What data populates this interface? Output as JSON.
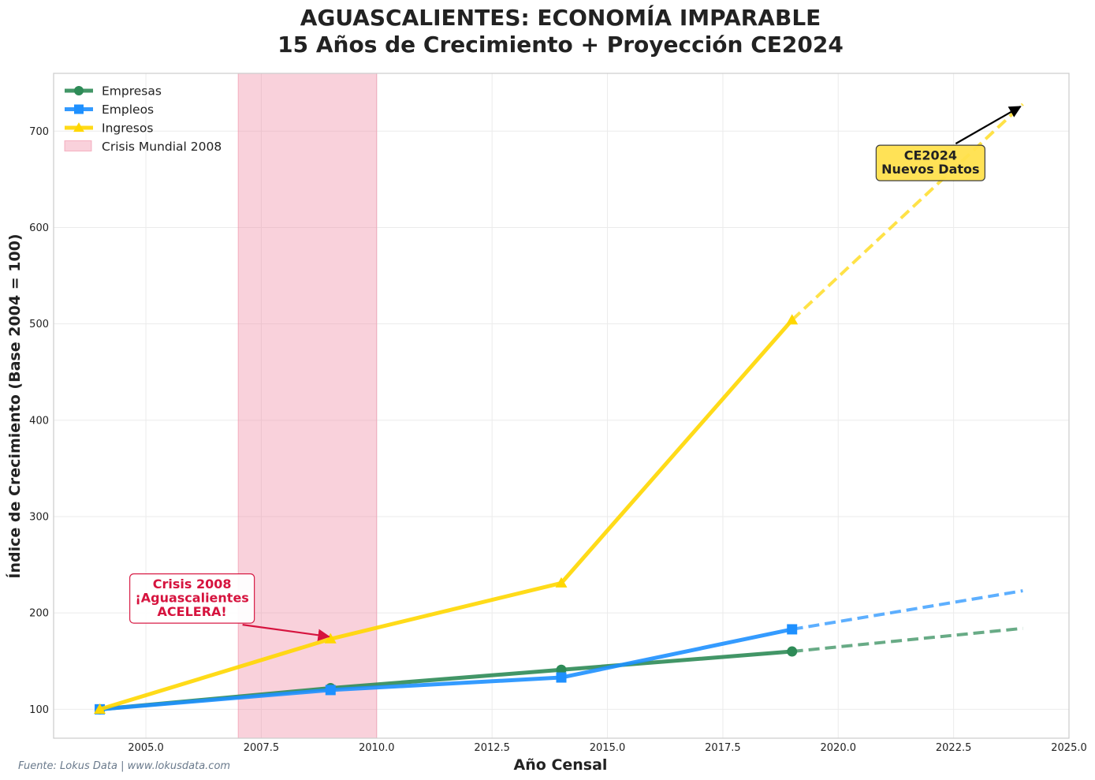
{
  "title_lines": [
    "AGUASCALIENTES: ECONOMÍA IMPARABLE",
    "15 Años de Crecimiento + Proyección CE2024"
  ],
  "source": "Fuente: Lokus Data | www.lokusdata.com",
  "chart_data": {
    "type": "line",
    "xlabel": "Año Censal",
    "ylabel": "Índice de Crecimiento (Base 2004 = 100)",
    "xlim": [
      2003,
      2025
    ],
    "ylim": [
      70,
      760
    ],
    "x_ticks": [
      2005.0,
      2007.5,
      2010.0,
      2012.5,
      2015.0,
      2017.5,
      2020.0,
      2022.5,
      2025.0
    ],
    "x_tick_labels": [
      "2005.0",
      "2007.5",
      "2010.0",
      "2012.5",
      "2015.0",
      "2017.5",
      "2020.0",
      "2022.5",
      "2025.0"
    ],
    "y_ticks": [
      100,
      200,
      300,
      400,
      500,
      600,
      700
    ],
    "y_tick_labels": [
      "100",
      "200",
      "300",
      "400",
      "500",
      "600",
      "700"
    ],
    "grid": true,
    "legend_position": "top-left",
    "series": [
      {
        "name": "Empresas",
        "color": "#2e8b57",
        "marker": "circle",
        "x": [
          2004,
          2009,
          2014,
          2019
        ],
        "values": [
          100,
          122,
          141,
          160
        ],
        "projection": {
          "x": [
            2019,
            2024
          ],
          "values": [
            160,
            184
          ]
        }
      },
      {
        "name": "Empleos",
        "color": "#1e90ff",
        "marker": "square",
        "x": [
          2004,
          2009,
          2014,
          2019
        ],
        "values": [
          100,
          120,
          133,
          183
        ],
        "projection": {
          "x": [
            2019,
            2024
          ],
          "values": [
            183,
            223
          ]
        }
      },
      {
        "name": "Ingresos",
        "color": "#ffd700",
        "marker": "triangle",
        "x": [
          2004,
          2009,
          2014,
          2019
        ],
        "values": [
          100,
          173,
          231,
          504
        ],
        "projection": {
          "x": [
            2019,
            2024
          ],
          "values": [
            504,
            728
          ]
        }
      }
    ],
    "shaded_region": {
      "name": "Crisis Mundial 2008",
      "x_start": 2007,
      "x_end": 2010,
      "color": "#f08ca4"
    },
    "annotations": [
      {
        "id": "crisis",
        "lines": [
          "Crisis 2008",
          "¡Aguascalientes",
          "ACELERA!"
        ],
        "target": [
          2009,
          173
        ],
        "text_pos": [
          2006,
          215
        ],
        "color": "#d6133e"
      },
      {
        "id": "ce2024",
        "lines": [
          "CE2024",
          "Nuevos Datos"
        ],
        "target": [
          2024,
          728
        ],
        "text_pos": [
          2022,
          667
        ],
        "color": "#ffe14d"
      }
    ]
  }
}
